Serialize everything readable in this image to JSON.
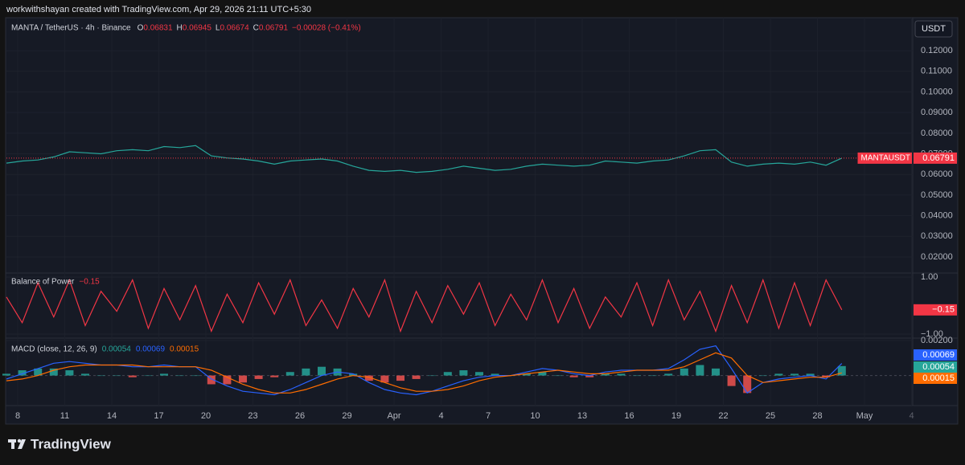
{
  "header": {
    "caption": "workwithshayan created with TradingView.com, Apr 29, 2026 21:11 UTC+5:30"
  },
  "symbol": {
    "name": "MANTA / TetherUS · 4h · Binance",
    "ohlc": [
      {
        "key": "O",
        "value": "0.06831"
      },
      {
        "key": "H",
        "value": "0.06945"
      },
      {
        "key": "L",
        "value": "0.06674"
      },
      {
        "key": "C",
        "value": "0.06791"
      }
    ],
    "change": "−0.00028 (−0.41%)"
  },
  "currency": "USDT",
  "brand": "TradingView",
  "time_axis": {
    "labels": [
      "8",
      "11",
      "14",
      "17",
      "20",
      "23",
      "26",
      "29",
      "Apr",
      "4",
      "7",
      "10",
      "13",
      "16",
      "19",
      "22",
      "25",
      "28",
      "May",
      "4"
    ]
  },
  "chart_data": [
    {
      "type": "line",
      "series": [
        {
          "name": "MANTAUSDT",
          "color": "#26a69a",
          "values": [
            0.0655,
            0.0665,
            0.067,
            0.0685,
            0.071,
            0.0705,
            0.07,
            0.0715,
            0.072,
            0.0715,
            0.0735,
            0.073,
            0.074,
            0.069,
            0.068,
            0.0675,
            0.0665,
            0.065,
            0.0665,
            0.067,
            0.0675,
            0.0665,
            0.064,
            0.062,
            0.0615,
            0.062,
            0.061,
            0.0615,
            0.0625,
            0.064,
            0.063,
            0.062,
            0.0625,
            0.064,
            0.065,
            0.0645,
            0.064,
            0.0645,
            0.0665,
            0.066,
            0.0655,
            0.0665,
            0.067,
            0.069,
            0.0715,
            0.072,
            0.066,
            0.064,
            0.065,
            0.0655,
            0.065,
            0.066,
            0.0645,
            0.0679
          ]
        }
      ],
      "price_line": 0.06791,
      "price_line_color": "#f23645",
      "ylim": [
        0.0122,
        0.136
      ],
      "yticks": [
        {
          "value": 0.12,
          "label": "0.12000"
        },
        {
          "value": 0.11,
          "label": "0.11000"
        },
        {
          "value": 0.1,
          "label": "0.10000"
        },
        {
          "value": 0.09,
          "label": "0.09000"
        },
        {
          "value": 0.08,
          "label": "0.08000"
        },
        {
          "value": 0.07,
          "label": "0.07000"
        },
        {
          "value": 0.06,
          "label": "0.06000"
        },
        {
          "value": 0.05,
          "label": "0.05000"
        },
        {
          "value": 0.04,
          "label": "0.04000"
        },
        {
          "value": 0.03,
          "label": "0.03000"
        },
        {
          "value": 0.02,
          "label": "0.02000"
        }
      ],
      "grid": true
    },
    {
      "type": "line",
      "title": "Balance of Power",
      "series": [
        {
          "color": "#f23645",
          "values": [
            0.3,
            -0.6,
            0.8,
            -0.4,
            0.9,
            -0.7,
            0.5,
            -0.2,
            0.9,
            -0.8,
            0.6,
            -0.5,
            0.7,
            -0.9,
            0.4,
            -0.6,
            0.8,
            -0.3,
            0.9,
            -0.7,
            0.2,
            -0.8,
            0.6,
            -0.4,
            0.9,
            -0.9,
            0.5,
            -0.6,
            0.7,
            -0.3,
            0.8,
            -0.7,
            0.4,
            -0.5,
            0.9,
            -0.6,
            0.6,
            -0.8,
            0.3,
            -0.4,
            0.8,
            -0.7,
            0.9,
            -0.5,
            0.5,
            -0.9,
            0.7,
            -0.6,
            0.9,
            -0.8,
            0.8,
            -0.7,
            0.9,
            -0.15
          ],
          "last_value_label": "−0.15"
        }
      ],
      "ylim": [
        -1.14,
        1.14
      ],
      "yticks": [
        {
          "value": 1,
          "label": "1.00"
        },
        {
          "value": -1,
          "label": "−1.00"
        }
      ],
      "grid": true
    },
    {
      "type": "macd",
      "title": "MACD (close, 12, 26, 9)",
      "series": [
        {
          "style": "histogram",
          "color": "#26a69a",
          "negative_color": "#ef5350",
          "values": [
            0.0001,
            0.0003,
            0.0004,
            0.0004,
            0.0003,
            0.0001,
            0.0,
            0.0,
            -0.0001,
            0.0,
            0.0001,
            0.0,
            0.0,
            -0.0005,
            -0.0005,
            -0.0004,
            -0.0002,
            -0.0001,
            0.0002,
            0.0004,
            0.0005,
            0.0004,
            0.0001,
            -0.0003,
            -0.0004,
            -0.0003,
            -0.0002,
            0.0,
            0.0002,
            0.0003,
            0.0002,
            0.0001,
            0.0,
            0.0001,
            0.0002,
            0.0,
            -0.0001,
            -0.0001,
            0.0001,
            0.0001,
            0.0,
            0.0,
            0.0001,
            0.0004,
            0.0006,
            0.0004,
            -0.0006,
            -0.001,
            0.0,
            0.0001,
            0.0001,
            0.0001,
            -0.0001,
            0.00054
          ]
        },
        {
          "style": "line",
          "color": "#2962ff",
          "values": [
            -0.0002,
            0.0001,
            0.0004,
            0.0007,
            0.0008,
            0.0007,
            0.0006,
            0.0006,
            0.0005,
            0.0005,
            0.0006,
            0.0005,
            0.0005,
            -0.0002,
            -0.0006,
            -0.0009,
            -0.001,
            -0.0011,
            -0.0008,
            -0.0004,
            0.0,
            0.0002,
            0.0001,
            -0.0004,
            -0.0008,
            -0.001,
            -0.0011,
            -0.0009,
            -0.0006,
            -0.0003,
            -0.0001,
            0.0,
            0.0,
            0.0002,
            0.0004,
            0.0003,
            0.0001,
            0.0,
            0.0002,
            0.0003,
            0.0003,
            0.0003,
            0.0004,
            0.0009,
            0.0015,
            0.0017,
            0.0004,
            -0.001,
            -0.0004,
            -0.0002,
            -0.0001,
            0.0,
            -0.0002,
            0.00069
          ]
        },
        {
          "style": "line",
          "color": "#ff6d00",
          "values": [
            -0.0003,
            -0.0002,
            0.0,
            0.0003,
            0.0005,
            0.0006,
            0.0006,
            0.0006,
            0.0006,
            0.0005,
            0.0005,
            0.0005,
            0.0005,
            0.0003,
            -0.0001,
            -0.0005,
            -0.0008,
            -0.001,
            -0.001,
            -0.0008,
            -0.0005,
            -0.0002,
            0.0,
            -0.0001,
            -0.0004,
            -0.0007,
            -0.0009,
            -0.0009,
            -0.0008,
            -0.0006,
            -0.0003,
            -0.0001,
            0.0,
            0.0001,
            0.0002,
            0.0003,
            0.0002,
            0.0001,
            0.0001,
            0.0002,
            0.0003,
            0.0003,
            0.0003,
            0.0005,
            0.0009,
            0.0013,
            0.001,
            0.0,
            -0.0004,
            -0.0003,
            -0.0002,
            -0.0001,
            -0.0001,
            0.00015
          ]
        }
      ],
      "ylim": [
        -0.00172,
        0.00214
      ],
      "yticks": [
        {
          "value": 0.002,
          "label": "0.00200"
        }
      ],
      "grid": true
    }
  ]
}
